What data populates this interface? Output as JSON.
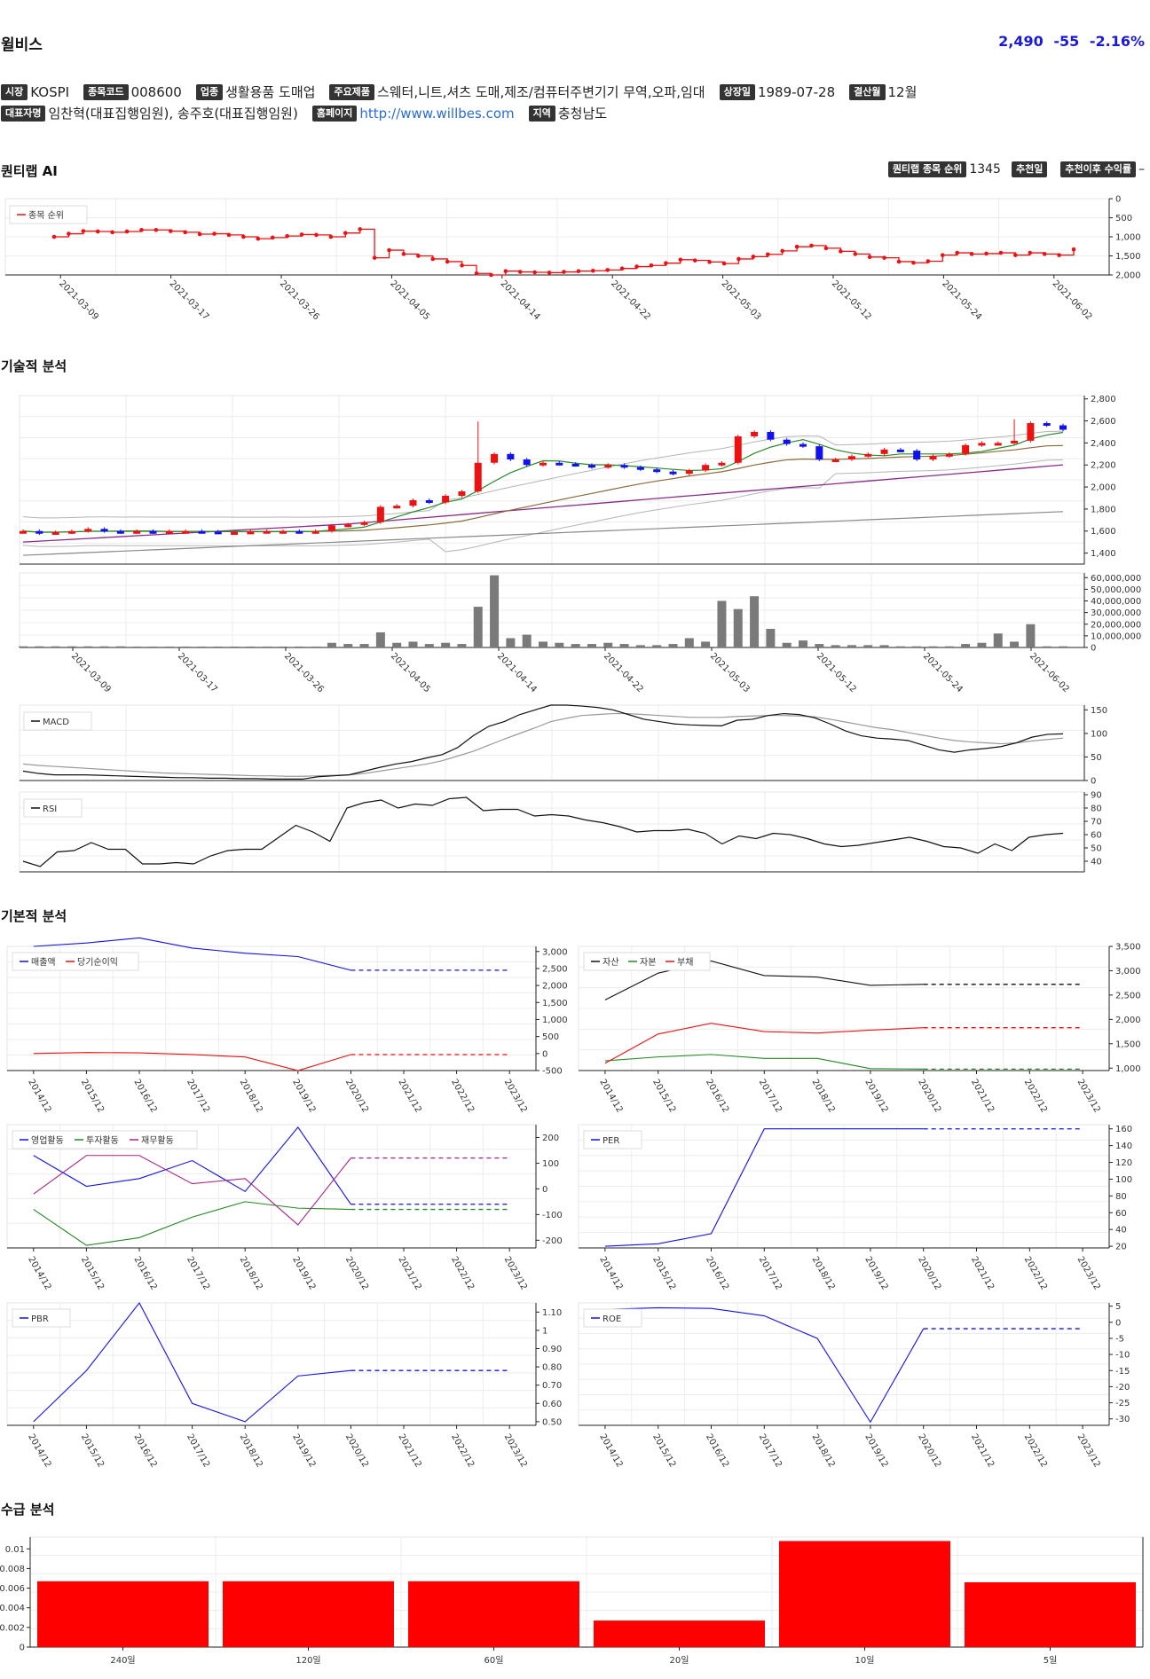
{
  "header": {
    "stock_name": "윌비스",
    "price": "2,490",
    "change": "-55",
    "change_pct": "-2.16%",
    "price_color": "#1a1adb"
  },
  "info": {
    "market_tag": "시장",
    "market": "KOSPI",
    "code_tag": "종목코드",
    "code": "008600",
    "industry_tag": "업종",
    "industry": "생활용품 도매업",
    "product_tag": "주요제품",
    "product": "스웨터,니트,셔츠 도매,제조/컴퓨터주변기기 무역,오파,임대",
    "listed_tag": "상장일",
    "listed": "1989-07-28",
    "fiscal_tag": "결산월",
    "fiscal": "12월",
    "ceo_tag": "대표자명",
    "ceo": "임찬혁(대표집행임원), 송주호(대표집행임원)",
    "homepage_tag": "홈페이지",
    "homepage": "http://www.willbes.com",
    "region_tag": "지역",
    "region": "충청남도"
  },
  "quant": {
    "title": "퀀티랩 AI",
    "rank_tag": "퀀티랩 종목 순위",
    "rank": "1345",
    "rec_date_tag": "추천일",
    "rec_date": "",
    "rec_return_tag": "추천이후 수익률",
    "rec_return": "–"
  },
  "sections": {
    "technical": "기술적 분석",
    "fundamental": "기본적 분석",
    "supply": "수급 분석"
  },
  "colors": {
    "up": "#ee1111",
    "down": "#1111ee",
    "rank_line": "#ee1111"
  },
  "chart_data": [
    {
      "type": "line",
      "title": "",
      "series": [
        {
          "name": "종목 순위",
          "values": [
            1000,
            920,
            850,
            860,
            880,
            860,
            820,
            820,
            850,
            880,
            930,
            920,
            950,
            1000,
            1050,
            1020,
            980,
            940,
            950,
            1000,
            900,
            800,
            1550,
            1350,
            1450,
            1500,
            1580,
            1650,
            1750,
            1960,
            2000,
            1900,
            1920,
            1930,
            1940,
            1920,
            1900,
            1890,
            1870,
            1830,
            1780,
            1750,
            1690,
            1600,
            1620,
            1660,
            1700,
            1580,
            1520,
            1460,
            1370,
            1260,
            1230,
            1300,
            1380,
            1450,
            1530,
            1550,
            1650,
            1680,
            1640,
            1480,
            1420,
            1450,
            1440,
            1420,
            1480,
            1420,
            1450,
            1480,
            1330
          ]
        }
      ],
      "x_ticks": [
        "2021-03-09",
        "2021-03-17",
        "2021-03-26",
        "2021-04-05",
        "2021-04-14",
        "2021-04-22",
        "2021-05-03",
        "2021-05-12",
        "2021-05-24",
        "2021-06-02"
      ],
      "y_ticks": [
        "0",
        "500",
        "1,000",
        "1,500",
        "2,000"
      ],
      "ylim": [
        0,
        2000
      ],
      "y_inverted": true,
      "legend": "top-left"
    },
    {
      "type": "candlestick",
      "title": "",
      "y_ticks": [
        "1,400",
        "1,600",
        "1,800",
        "2,000",
        "2,200",
        "2,400",
        "2,600",
        "2,800"
      ],
      "ylim": [
        1300,
        2830
      ]
    },
    {
      "type": "bar",
      "title": "",
      "y_ticks": [
        "0",
        "10,000,000",
        "20,000,000",
        "30,000,000",
        "40,000,000",
        "50,000,000",
        "60,000,000"
      ],
      "x_ticks": [
        "2021-03-09",
        "2021-03-17",
        "2021-03-26",
        "2021-04-05",
        "2021-04-14",
        "2021-04-22",
        "2021-05-03",
        "2021-05-12",
        "2021-05-24",
        "2021-06-02"
      ]
    },
    {
      "type": "line",
      "title": "",
      "series": [
        {
          "name": "MACD"
        }
      ],
      "y_ticks": [
        "0",
        "50",
        "100",
        "150"
      ],
      "ylim": [
        0,
        160
      ],
      "legend": "top-left"
    },
    {
      "type": "line",
      "title": "",
      "series": [
        {
          "name": "RSI"
        }
      ],
      "y_ticks": [
        "40",
        "50",
        "60",
        "70",
        "80",
        "90"
      ],
      "ylim": [
        32,
        92
      ],
      "legend": "top-left"
    },
    {
      "type": "line",
      "categories": [
        "2014/12",
        "2015/12",
        "2016/12",
        "2017/12",
        "2018/12",
        "2019/12",
        "2020/12",
        "2021/12",
        "2022/12",
        "2023/12"
      ],
      "series": [
        {
          "name": "매출액",
          "values": [
            3150,
            3250,
            3400,
            3100,
            2950,
            2850,
            2450,
            2450,
            2450,
            2450
          ]
        },
        {
          "name": "당기순이익",
          "values": [
            0,
            30,
            20,
            -30,
            -100,
            -500,
            -30,
            -30,
            -30,
            -30
          ]
        }
      ],
      "y_ticks": [
        "-500",
        "0",
        "500",
        "1,000",
        "1,500",
        "2,000",
        "2,500",
        "3,000"
      ],
      "ylim": [
        -500,
        3150
      ]
    },
    {
      "type": "line",
      "categories": [
        "2014/12",
        "2015/12",
        "2016/12",
        "2017/12",
        "2018/12",
        "2019/12",
        "2020/12",
        "2021/12",
        "2022/12",
        "2023/12"
      ],
      "series": [
        {
          "name": "자산",
          "values": [
            2400,
            2950,
            3200,
            2900,
            2870,
            2700,
            2720,
            2720,
            2720,
            2720
          ]
        },
        {
          "name": "자본",
          "values": [
            1150,
            1230,
            1280,
            1200,
            1200,
            990,
            980,
            980,
            980,
            980
          ]
        },
        {
          "name": "부채",
          "values": [
            1100,
            1700,
            1920,
            1750,
            1720,
            1780,
            1830,
            1830,
            1830,
            1830
          ]
        }
      ],
      "y_ticks": [
        "1,000",
        "1,500",
        "2,000",
        "2,500",
        "3,000",
        "3,500"
      ],
      "ylim": [
        950,
        3500
      ]
    },
    {
      "type": "line",
      "categories": [
        "2014/12",
        "2015/12",
        "2016/12",
        "2017/12",
        "2018/12",
        "2019/12",
        "2020/12",
        "2021/12",
        "2022/12",
        "2023/12"
      ],
      "series": [
        {
          "name": "영업활동",
          "values": [
            130,
            10,
            40,
            110,
            -10,
            240,
            -60,
            -60,
            -60,
            -60
          ]
        },
        {
          "name": "투자활동",
          "values": [
            -80,
            -220,
            -190,
            -110,
            -50,
            -75,
            -80,
            -80,
            -80,
            -80
          ]
        },
        {
          "name": "재무활동",
          "values": [
            -20,
            130,
            130,
            20,
            40,
            -140,
            120,
            120,
            120,
            120
          ]
        }
      ],
      "y_ticks": [
        "-200",
        "-100",
        "0",
        "100",
        "200"
      ],
      "ylim": [
        -230,
        250
      ]
    },
    {
      "type": "line",
      "categories": [
        "2014/12",
        "2015/12",
        "2016/12",
        "2017/12",
        "2018/12",
        "2019/12",
        "2020/12",
        "2021/12",
        "2022/12",
        "2023/12"
      ],
      "series": [
        {
          "name": "PER",
          "values": [
            20,
            23,
            35,
            160,
            160,
            160,
            160,
            160,
            160,
            160
          ]
        }
      ],
      "y_ticks": [
        "20",
        "40",
        "60",
        "80",
        "100",
        "120",
        "140",
        "160"
      ],
      "ylim": [
        18,
        165
      ]
    },
    {
      "type": "line",
      "categories": [
        "2014/12",
        "2015/12",
        "2016/12",
        "2017/12",
        "2018/12",
        "2019/12",
        "2020/12",
        "2021/12",
        "2022/12",
        "2023/12"
      ],
      "series": [
        {
          "name": "PBR",
          "values": [
            0.5,
            0.78,
            1.15,
            0.6,
            0.5,
            0.75,
            0.78,
            0.78,
            0.78,
            0.78
          ]
        }
      ],
      "y_ticks": [
        "0.50",
        "0.60",
        "0.70",
        "0.80",
        "0.90",
        "1",
        "1.10"
      ],
      "ylim": [
        0.48,
        1.15
      ]
    },
    {
      "type": "line",
      "categories": [
        "2014/12",
        "2015/12",
        "2016/12",
        "2017/12",
        "2018/12",
        "2019/12",
        "2020/12",
        "2021/12",
        "2022/12",
        "2023/12"
      ],
      "series": [
        {
          "name": "ROE",
          "values": [
            4,
            4.5,
            4.3,
            2,
            -5,
            -31,
            -2,
            -2,
            -2,
            -2
          ]
        }
      ],
      "y_ticks": [
        "-30",
        "-25",
        "-20",
        "-15",
        "-10",
        "-5",
        "0",
        "5"
      ],
      "ylim": [
        -32,
        6
      ]
    },
    {
      "type": "bar",
      "categories": [
        "240일",
        "120일",
        "60일",
        "20일",
        "10일",
        "5일"
      ],
      "values": [
        0.0067,
        0.0067,
        0.0067,
        0.0027,
        0.0108,
        0.0066
      ],
      "y_ticks": [
        "0",
        "0.002",
        "0.004",
        "0.006",
        "0.008",
        "0.01"
      ],
      "ylim": [
        0,
        0.0112
      ]
    }
  ]
}
